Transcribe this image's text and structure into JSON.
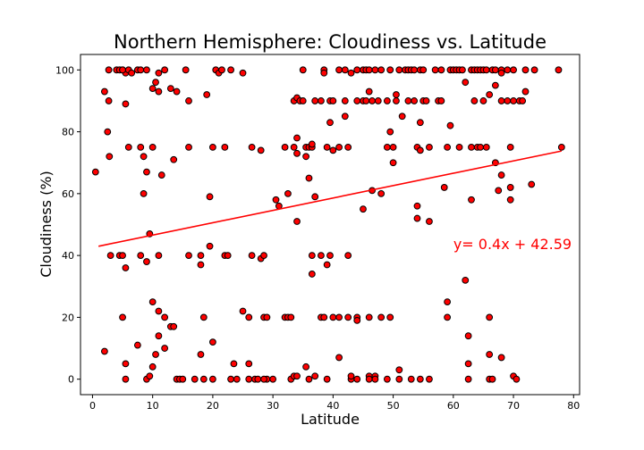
{
  "chart_data": {
    "type": "scatter",
    "title": "Northern Hemisphere: Cloudiness vs. Latitude",
    "xlabel": "Latitude",
    "ylabel": "Cloudiness (%)",
    "xlim": [
      -2,
      81
    ],
    "ylim": [
      -5,
      105
    ],
    "xticks": [
      0,
      10,
      20,
      30,
      40,
      50,
      60,
      70,
      80
    ],
    "yticks": [
      0,
      20,
      40,
      60,
      80,
      100
    ],
    "grid": false,
    "marker_fill": "#ff0000",
    "marker_edge": "#000000",
    "line_color": "#ff0000",
    "annotation": {
      "text": "y= 0.4x + 42.59",
      "x": 60,
      "y": 42,
      "color": "#ff0000"
    },
    "regression": {
      "slope": 0.4,
      "intercept": 42.59,
      "x_range": [
        1,
        78
      ]
    },
    "series": [
      {
        "points": [
          [
            0.5,
            67
          ],
          [
            2,
            93
          ],
          [
            2.5,
            80
          ],
          [
            2.7,
            100
          ],
          [
            2.8,
            72
          ],
          [
            2.7,
            90
          ],
          [
            3,
            40
          ],
          [
            2,
            9
          ],
          [
            4,
            100
          ],
          [
            4.5,
            100
          ],
          [
            5,
            100
          ],
          [
            5.5,
            99
          ],
          [
            5,
            100
          ],
          [
            6,
            100
          ],
          [
            6.5,
            99
          ],
          [
            7.5,
            100
          ],
          [
            8,
            100
          ],
          [
            9,
            100
          ],
          [
            5.5,
            89
          ],
          [
            6,
            75
          ],
          [
            4.5,
            40
          ],
          [
            5,
            40
          ],
          [
            5.5,
            36
          ],
          [
            5,
            20
          ],
          [
            5.5,
            5
          ],
          [
            5.5,
            0
          ],
          [
            8,
            75
          ],
          [
            8.5,
            72
          ],
          [
            8.5,
            60
          ],
          [
            9,
            67
          ],
          [
            9.5,
            47
          ],
          [
            8,
            40
          ],
          [
            9,
            38
          ],
          [
            7.5,
            11
          ],
          [
            9,
            0
          ],
          [
            9.5,
            1
          ],
          [
            10,
            4
          ],
          [
            10,
            25
          ],
          [
            10.5,
            8
          ],
          [
            11,
            14
          ],
          [
            11,
            22
          ],
          [
            12,
            20
          ],
          [
            12,
            10
          ],
          [
            13,
            17
          ],
          [
            13.5,
            17
          ],
          [
            10,
            94
          ],
          [
            10.5,
            96
          ],
          [
            11,
            99
          ],
          [
            11,
            93
          ],
          [
            12,
            100
          ],
          [
            11.5,
            66
          ],
          [
            13,
            94
          ],
          [
            14,
            93
          ],
          [
            10,
            75
          ],
          [
            11,
            40
          ],
          [
            13.5,
            71
          ],
          [
            14,
            0
          ],
          [
            14.5,
            0
          ],
          [
            15,
            0
          ],
          [
            15.5,
            100
          ],
          [
            16,
            75
          ],
          [
            16,
            40
          ],
          [
            16,
            90
          ],
          [
            17,
            0
          ],
          [
            18,
            37
          ],
          [
            18,
            40
          ],
          [
            18,
            8
          ],
          [
            18.5,
            20
          ],
          [
            18.5,
            0
          ],
          [
            19,
            92
          ],
          [
            19.5,
            43
          ],
          [
            19.5,
            59
          ],
          [
            20,
            75
          ],
          [
            20,
            12
          ],
          [
            20,
            0
          ],
          [
            20.5,
            100
          ],
          [
            21,
            99
          ],
          [
            21.5,
            100
          ],
          [
            22,
            75
          ],
          [
            22,
            40
          ],
          [
            22.5,
            40
          ],
          [
            23,
            100
          ],
          [
            23,
            0
          ],
          [
            23.5,
            5
          ],
          [
            24,
            0
          ],
          [
            25,
            99
          ],
          [
            25,
            22
          ],
          [
            26,
            5
          ],
          [
            26,
            0
          ],
          [
            26.5,
            75
          ],
          [
            26.5,
            40
          ],
          [
            26,
            20
          ],
          [
            27,
            0
          ],
          [
            27.5,
            0
          ],
          [
            28,
            74
          ],
          [
            28,
            39
          ],
          [
            28.5,
            40
          ],
          [
            28.5,
            20
          ],
          [
            29,
            20
          ],
          [
            29,
            0
          ],
          [
            28.5,
            0
          ],
          [
            30,
            0
          ],
          [
            30.5,
            58
          ],
          [
            31,
            56
          ],
          [
            32,
            20
          ],
          [
            32,
            75
          ],
          [
            32.5,
            60
          ],
          [
            32.5,
            20
          ],
          [
            33,
            20
          ],
          [
            33,
            0
          ],
          [
            33.5,
            1
          ],
          [
            33.5,
            75
          ],
          [
            33.5,
            90
          ],
          [
            34,
            91
          ],
          [
            34,
            78
          ],
          [
            34,
            73
          ],
          [
            34,
            51
          ],
          [
            34,
            1
          ],
          [
            34.5,
            90
          ],
          [
            35,
            100
          ],
          [
            35,
            90
          ],
          [
            35.5,
            75
          ],
          [
            35.5,
            72
          ],
          [
            35.5,
            4
          ],
          [
            36,
            65
          ],
          [
            36,
            75
          ],
          [
            36,
            0
          ],
          [
            36.5,
            75
          ],
          [
            36.5,
            76
          ],
          [
            36.5,
            34
          ],
          [
            36.5,
            40
          ],
          [
            37,
            90
          ],
          [
            37,
            59
          ],
          [
            37,
            1
          ],
          [
            38,
            90
          ],
          [
            38,
            40
          ],
          [
            38,
            20
          ],
          [
            38.5,
            20
          ],
          [
            38.5,
            100
          ],
          [
            38.5,
            99
          ],
          [
            39,
            75
          ],
          [
            39,
            37
          ],
          [
            39,
            0
          ],
          [
            39.5,
            90
          ],
          [
            39.5,
            83
          ],
          [
            39.5,
            40
          ],
          [
            40,
            90
          ],
          [
            40,
            74
          ],
          [
            40,
            20
          ],
          [
            41,
            100
          ],
          [
            41,
            7
          ],
          [
            41,
            75
          ],
          [
            41,
            20
          ],
          [
            42,
            100
          ],
          [
            42,
            90
          ],
          [
            42,
            85
          ],
          [
            42.5,
            75
          ],
          [
            42.5,
            40
          ],
          [
            42.5,
            20
          ],
          [
            43,
            99
          ],
          [
            43,
            0
          ],
          [
            43,
            1
          ],
          [
            44,
            20
          ],
          [
            44,
            19
          ],
          [
            44,
            100
          ],
          [
            44,
            90
          ],
          [
            44,
            0
          ],
          [
            45,
            90
          ],
          [
            45,
            100
          ],
          [
            45,
            55
          ],
          [
            45.5,
            90
          ],
          [
            45.5,
            100
          ],
          [
            46,
            93
          ],
          [
            46,
            20
          ],
          [
            46,
            100
          ],
          [
            46,
            1
          ],
          [
            46,
            0
          ],
          [
            46.5,
            61
          ],
          [
            46.5,
            90
          ],
          [
            47,
            100
          ],
          [
            47,
            1
          ],
          [
            47,
            0
          ],
          [
            47.5,
            90
          ],
          [
            48,
            60
          ],
          [
            48,
            100
          ],
          [
            48,
            20
          ],
          [
            49,
            90
          ],
          [
            49,
            75
          ],
          [
            49,
            0
          ],
          [
            49.5,
            100
          ],
          [
            49.5,
            80
          ],
          [
            49.5,
            20
          ],
          [
            50,
            75
          ],
          [
            50,
            70
          ],
          [
            50.5,
            92
          ],
          [
            50.5,
            90
          ],
          [
            51,
            100
          ],
          [
            51,
            3
          ],
          [
            51,
            0
          ],
          [
            51.5,
            85
          ],
          [
            52,
            100
          ],
          [
            52.5,
            100
          ],
          [
            52.5,
            90
          ],
          [
            53,
            100
          ],
          [
            53,
            0
          ],
          [
            53.5,
            90
          ],
          [
            53.5,
            100
          ],
          [
            54,
            75
          ],
          [
            54,
            56
          ],
          [
            54,
            52
          ],
          [
            54.5,
            74
          ],
          [
            54.5,
            100
          ],
          [
            54.5,
            83
          ],
          [
            54.5,
            0
          ],
          [
            55,
            90
          ],
          [
            55,
            100
          ],
          [
            55.5,
            90
          ],
          [
            56,
            75
          ],
          [
            56,
            51
          ],
          [
            56,
            0
          ],
          [
            57,
            100
          ],
          [
            57.5,
            90
          ],
          [
            58,
            100
          ],
          [
            58,
            90
          ],
          [
            58.5,
            62
          ],
          [
            59,
            25
          ],
          [
            59,
            20
          ],
          [
            59,
            75
          ],
          [
            59.5,
            82
          ],
          [
            59.5,
            100
          ],
          [
            60,
            100
          ],
          [
            60.5,
            100
          ],
          [
            61,
            75
          ],
          [
            61,
            100
          ],
          [
            61.5,
            100
          ],
          [
            62,
            32
          ],
          [
            62,
            96
          ],
          [
            62.5,
            14
          ],
          [
            62.5,
            5
          ],
          [
            62.5,
            0
          ],
          [
            63,
            58
          ],
          [
            63,
            75
          ],
          [
            63,
            100
          ],
          [
            63.5,
            90
          ],
          [
            63.5,
            100
          ],
          [
            64,
            100
          ],
          [
            64,
            75
          ],
          [
            64.5,
            75
          ],
          [
            64.5,
            100
          ],
          [
            65,
            90
          ],
          [
            65,
            100
          ],
          [
            65.5,
            75
          ],
          [
            65.5,
            100
          ],
          [
            66,
            8
          ],
          [
            66,
            0
          ],
          [
            66,
            92
          ],
          [
            66,
            20
          ],
          [
            66.5,
            100
          ],
          [
            66.5,
            0
          ],
          [
            67,
            95
          ],
          [
            67,
            70
          ],
          [
            67,
            100
          ],
          [
            67.5,
            61
          ],
          [
            68,
            66
          ],
          [
            68,
            7
          ],
          [
            68,
            100
          ],
          [
            68,
            99
          ],
          [
            68,
            90
          ],
          [
            69,
            100
          ],
          [
            69,
            90
          ],
          [
            69.5,
            62
          ],
          [
            69.5,
            58
          ],
          [
            69.5,
            75
          ],
          [
            70,
            100
          ],
          [
            70,
            1
          ],
          [
            70,
            90
          ],
          [
            70.5,
            0
          ],
          [
            71,
            90
          ],
          [
            71.5,
            90
          ],
          [
            72,
            93
          ],
          [
            72,
            100
          ],
          [
            73,
            63
          ],
          [
            73.5,
            100
          ],
          [
            77.5,
            100
          ],
          [
            78,
            75
          ]
        ]
      }
    ]
  }
}
